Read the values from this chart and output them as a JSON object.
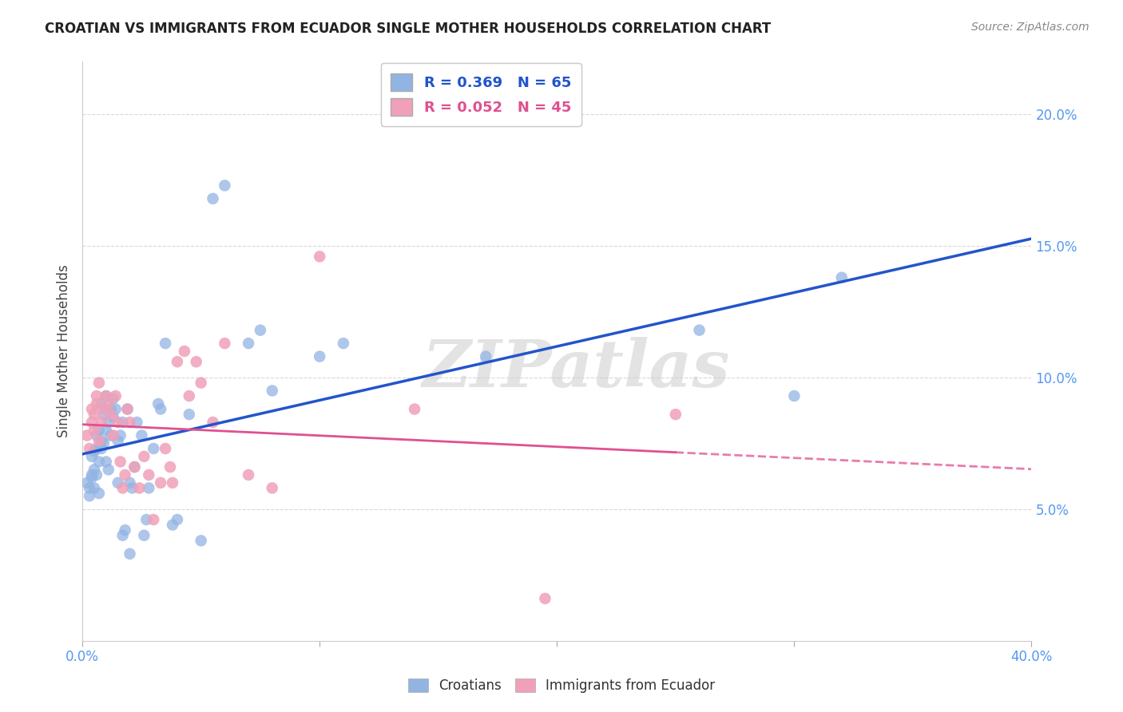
{
  "title": "CROATIAN VS IMMIGRANTS FROM ECUADOR SINGLE MOTHER HOUSEHOLDS CORRELATION CHART",
  "source": "Source: ZipAtlas.com",
  "ylabel": "Single Mother Households",
  "xlim": [
    0.0,
    0.4
  ],
  "ylim": [
    0.0,
    0.22
  ],
  "xticks": [
    0.0,
    0.1,
    0.2,
    0.3,
    0.4
  ],
  "xticklabels": [
    "0.0%",
    "",
    "",
    "",
    "40.0%"
  ],
  "yticks_right": [
    0.05,
    0.1,
    0.15,
    0.2
  ],
  "yticklabels_right": [
    "5.0%",
    "10.0%",
    "15.0%",
    "20.0%"
  ],
  "legend_labels": [
    "Croatians",
    "Immigrants from Ecuador"
  ],
  "R_croatian": 0.369,
  "N_croatian": 65,
  "R_ecuador": 0.052,
  "N_ecuador": 45,
  "blue_color": "#92b4e3",
  "pink_color": "#f0a0b8",
  "blue_line_color": "#2255cc",
  "pink_line_color": "#e05090",
  "watermark": "ZIPatlas",
  "background_color": "#ffffff",
  "grid_color": "#d8d8d8",
  "title_color": "#222222",
  "axis_label_color": "#444444",
  "tick_color": "#5599ee",
  "croatian_x": [
    0.002,
    0.003,
    0.003,
    0.004,
    0.004,
    0.004,
    0.005,
    0.005,
    0.005,
    0.006,
    0.006,
    0.006,
    0.007,
    0.007,
    0.007,
    0.008,
    0.008,
    0.008,
    0.009,
    0.009,
    0.01,
    0.01,
    0.01,
    0.011,
    0.011,
    0.012,
    0.012,
    0.013,
    0.013,
    0.014,
    0.015,
    0.015,
    0.016,
    0.017,
    0.017,
    0.018,
    0.019,
    0.02,
    0.02,
    0.021,
    0.022,
    0.023,
    0.025,
    0.026,
    0.027,
    0.028,
    0.03,
    0.032,
    0.033,
    0.035,
    0.038,
    0.04,
    0.045,
    0.05,
    0.055,
    0.06,
    0.07,
    0.075,
    0.08,
    0.1,
    0.11,
    0.17,
    0.26,
    0.3,
    0.32
  ],
  "croatian_y": [
    0.06,
    0.055,
    0.058,
    0.062,
    0.063,
    0.07,
    0.065,
    0.072,
    0.058,
    0.073,
    0.063,
    0.078,
    0.068,
    0.08,
    0.056,
    0.076,
    0.073,
    0.09,
    0.086,
    0.075,
    0.093,
    0.068,
    0.08,
    0.083,
    0.065,
    0.088,
    0.078,
    0.085,
    0.092,
    0.088,
    0.06,
    0.076,
    0.078,
    0.083,
    0.04,
    0.042,
    0.088,
    0.033,
    0.06,
    0.058,
    0.066,
    0.083,
    0.078,
    0.04,
    0.046,
    0.058,
    0.073,
    0.09,
    0.088,
    0.113,
    0.044,
    0.046,
    0.086,
    0.038,
    0.168,
    0.173,
    0.113,
    0.118,
    0.095,
    0.108,
    0.113,
    0.108,
    0.118,
    0.093,
    0.138
  ],
  "ecuador_x": [
    0.002,
    0.003,
    0.004,
    0.004,
    0.005,
    0.005,
    0.006,
    0.006,
    0.007,
    0.007,
    0.008,
    0.009,
    0.01,
    0.011,
    0.012,
    0.013,
    0.014,
    0.015,
    0.016,
    0.017,
    0.018,
    0.019,
    0.02,
    0.022,
    0.024,
    0.026,
    0.028,
    0.03,
    0.033,
    0.035,
    0.037,
    0.038,
    0.04,
    0.043,
    0.045,
    0.048,
    0.05,
    0.055,
    0.06,
    0.07,
    0.08,
    0.1,
    0.14,
    0.195,
    0.25
  ],
  "ecuador_y": [
    0.078,
    0.073,
    0.088,
    0.083,
    0.08,
    0.086,
    0.093,
    0.09,
    0.076,
    0.098,
    0.083,
    0.088,
    0.093,
    0.09,
    0.086,
    0.078,
    0.093,
    0.083,
    0.068,
    0.058,
    0.063,
    0.088,
    0.083,
    0.066,
    0.058,
    0.07,
    0.063,
    0.046,
    0.06,
    0.073,
    0.066,
    0.06,
    0.106,
    0.11,
    0.093,
    0.106,
    0.098,
    0.083,
    0.113,
    0.063,
    0.058,
    0.146,
    0.088,
    0.016,
    0.086
  ]
}
